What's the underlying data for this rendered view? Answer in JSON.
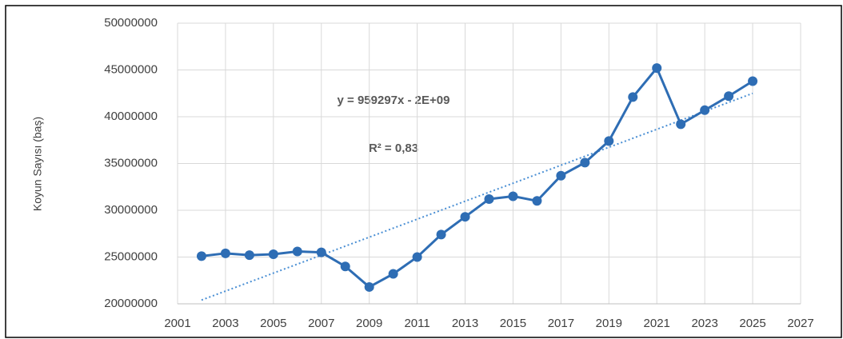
{
  "chart_data": {
    "type": "line",
    "ylabel": "Koyun Sayısı (baş)",
    "annotations": [
      "y = 959297x - 2E+09",
      "R² = 0,83"
    ],
    "x": [
      2002,
      2003,
      2004,
      2005,
      2006,
      2007,
      2008,
      2009,
      2010,
      2011,
      2012,
      2013,
      2014,
      2015,
      2016,
      2017,
      2018,
      2019,
      2020,
      2021,
      2022,
      2023,
      2024,
      2025
    ],
    "values": [
      25100000,
      25400000,
      25200000,
      25300000,
      25600000,
      25500000,
      24000000,
      21800000,
      23200000,
      25000000,
      27400000,
      29300000,
      31200000,
      31500000,
      31000000,
      33700000,
      35100000,
      37400000,
      42100000,
      45200000,
      39200000,
      40700000,
      42200000,
      43800000
    ],
    "color": "#2e6db4",
    "trendline": {
      "x": [
        2002,
        2025
      ],
      "values": [
        20400000,
        42500000
      ],
      "color": "#4a8fd4"
    },
    "xlim": [
      2001,
      2027
    ],
    "xticks": [
      2001,
      2003,
      2005,
      2007,
      2009,
      2011,
      2013,
      2015,
      2017,
      2019,
      2021,
      2023,
      2025,
      2027
    ],
    "ylim": [
      20000000,
      50000000
    ],
    "yticks": [
      20000000,
      25000000,
      30000000,
      35000000,
      40000000,
      45000000,
      50000000
    ],
    "grid": true
  }
}
